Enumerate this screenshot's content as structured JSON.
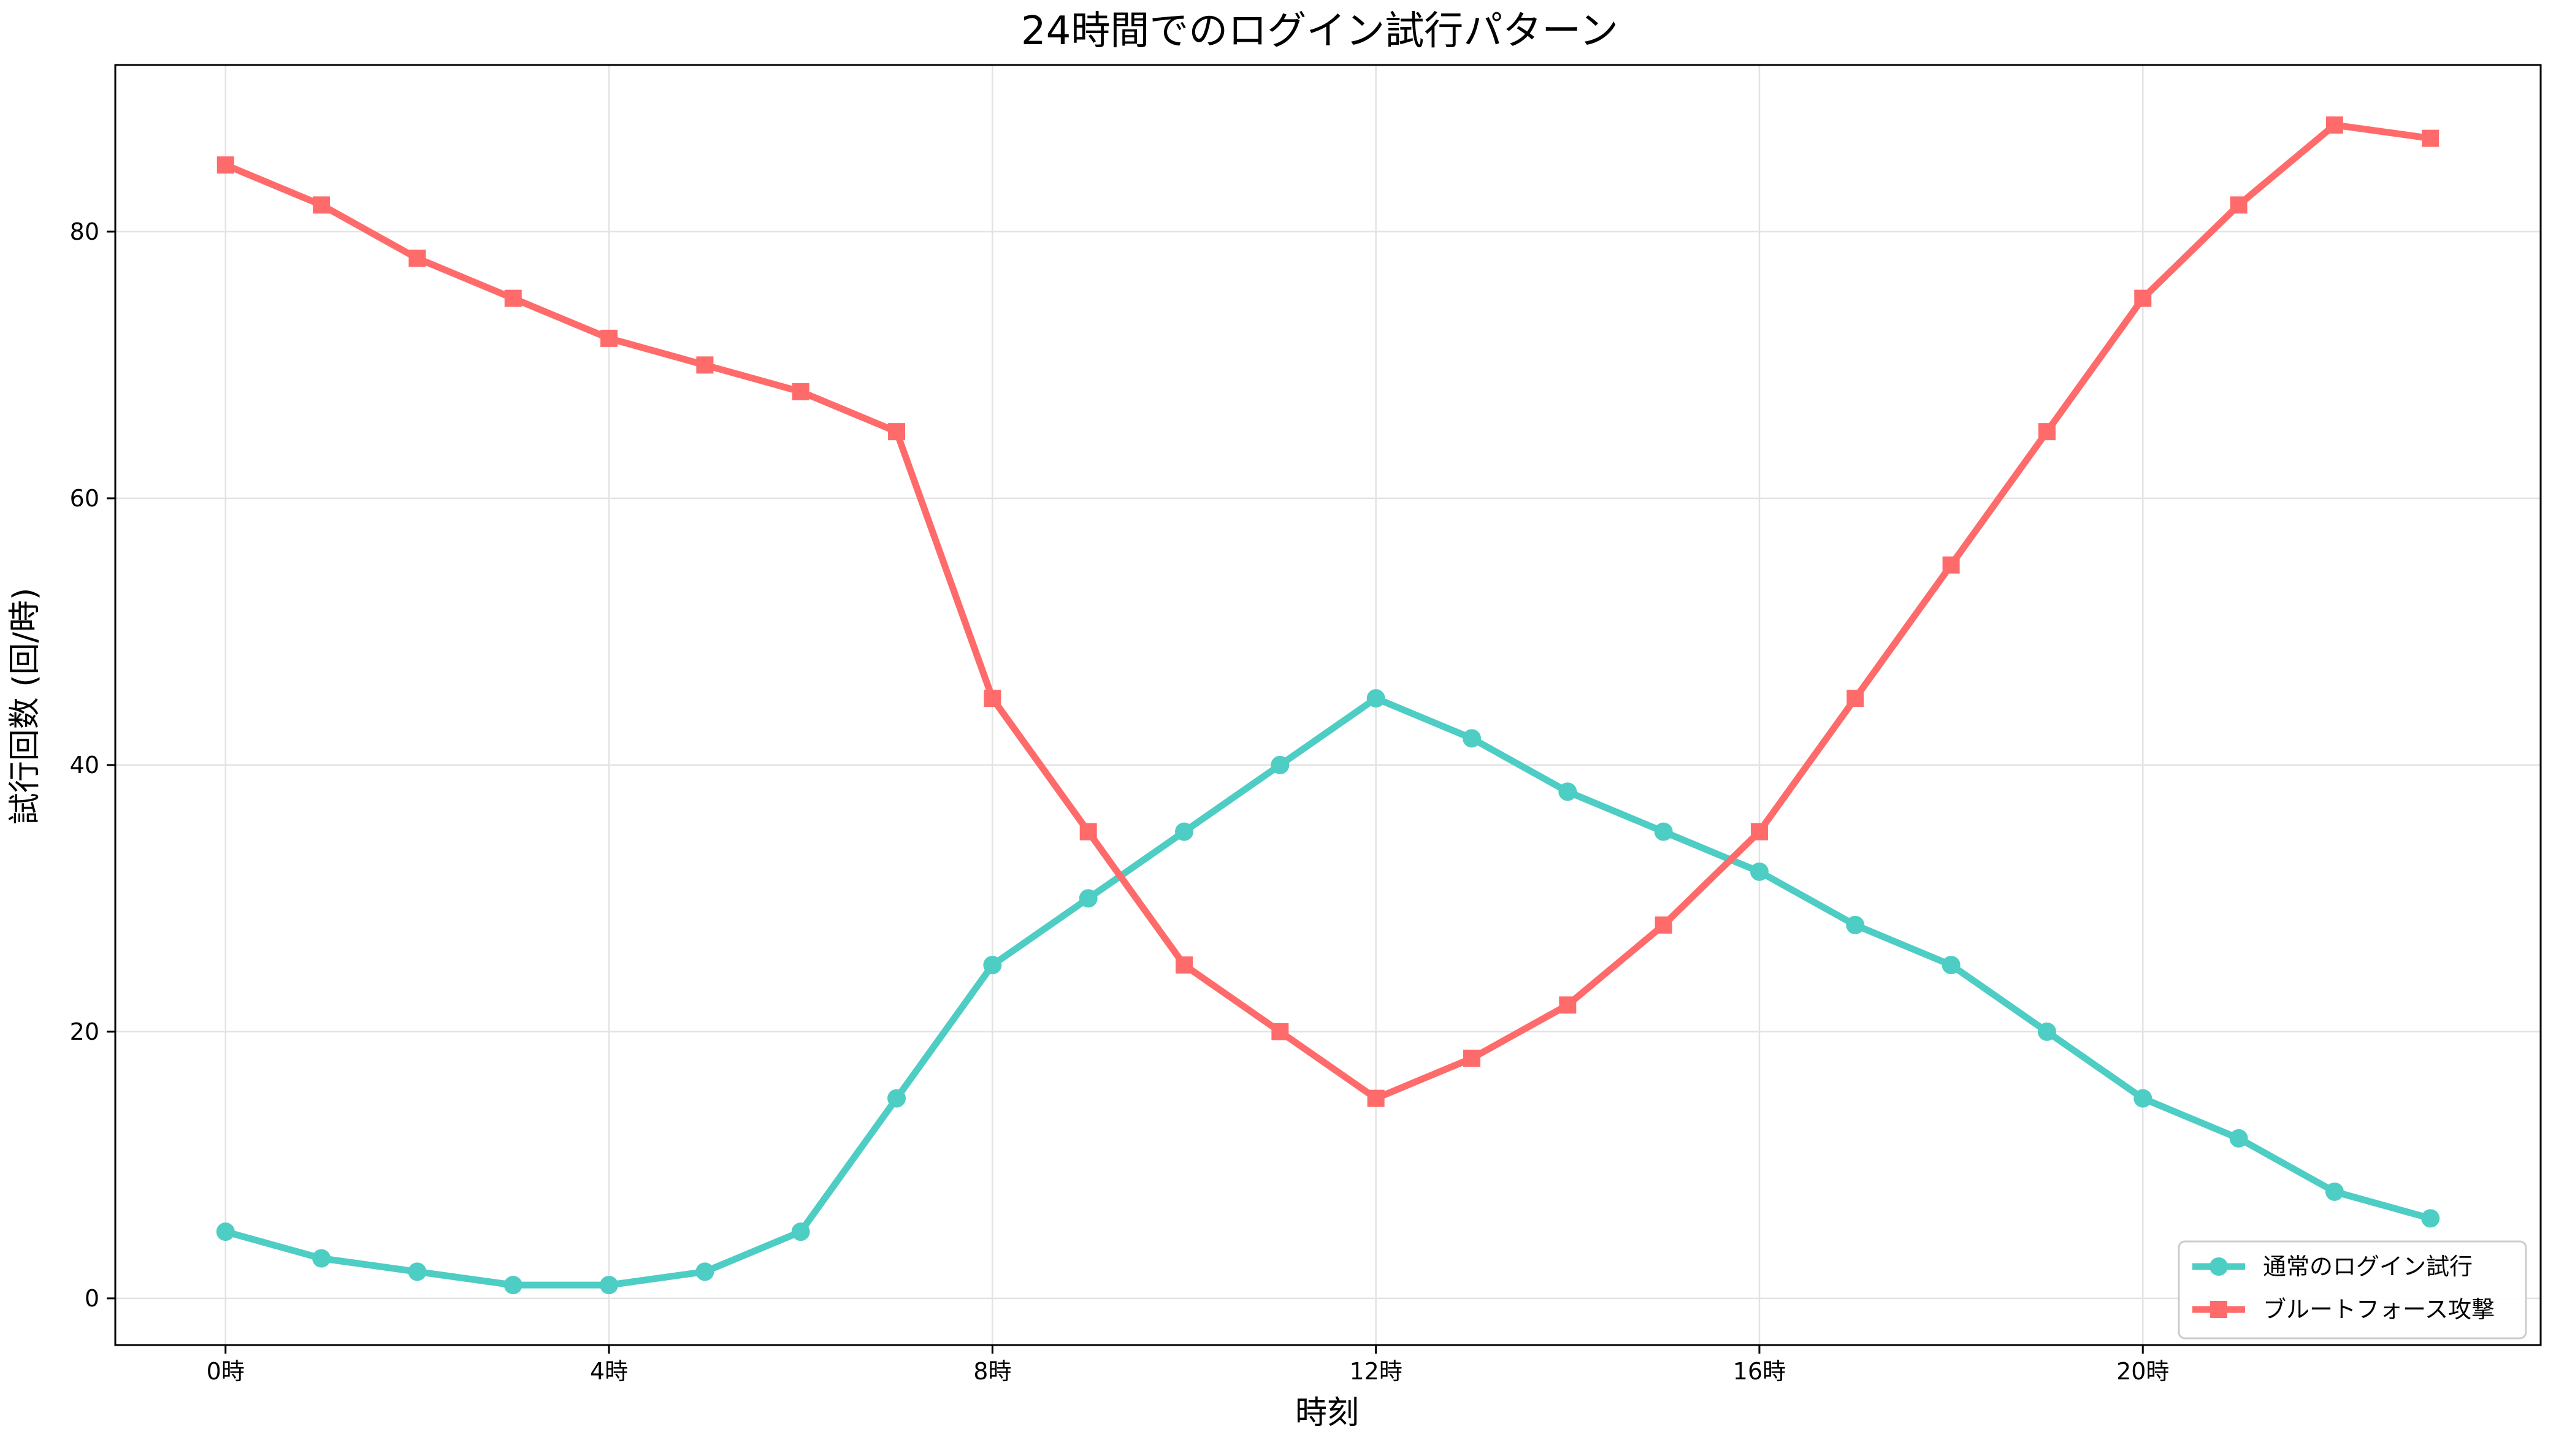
{
  "chart_data": {
    "type": "line",
    "title": "24時間でのログイン試行パターン",
    "xlabel": "時刻",
    "ylabel": "試行回数 (回/時)",
    "x": [
      0,
      1,
      2,
      3,
      4,
      5,
      6,
      7,
      8,
      9,
      10,
      11,
      12,
      13,
      14,
      15,
      16,
      17,
      18,
      19,
      20,
      21,
      22,
      23
    ],
    "xticks": [
      0,
      4,
      8,
      12,
      16,
      20
    ],
    "xtick_labels": [
      "0時",
      "4時",
      "8時",
      "12時",
      "16時",
      "20時"
    ],
    "xlim": [
      -1.15,
      24.15
    ],
    "yticks": [
      0,
      20,
      40,
      60,
      80
    ],
    "ytick_labels": [
      "0",
      "20",
      "40",
      "60",
      "80"
    ],
    "ylim": [
      -3.5,
      92.5
    ],
    "grid": true,
    "legend_position": "bottom-right",
    "series": [
      {
        "name": "通常のログイン試行",
        "color": "#4ECDC4",
        "marker": "circle",
        "values": [
          5,
          3,
          2,
          1,
          1,
          2,
          5,
          15,
          25,
          30,
          35,
          40,
          45,
          42,
          38,
          35,
          32,
          28,
          25,
          20,
          15,
          12,
          8,
          6
        ]
      },
      {
        "name": "ブルートフォース攻撃",
        "color": "#FF6B6B",
        "marker": "square",
        "values": [
          85,
          82,
          78,
          75,
          72,
          70,
          68,
          65,
          45,
          35,
          25,
          20,
          15,
          18,
          22,
          28,
          35,
          45,
          55,
          65,
          75,
          82,
          88,
          87
        ]
      }
    ]
  }
}
